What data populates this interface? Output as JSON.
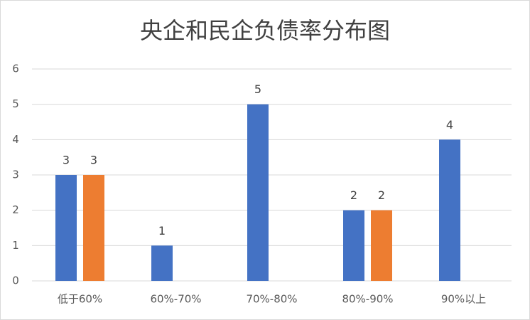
{
  "chart_data": {
    "type": "bar",
    "title": "央企和民企负债率分布图",
    "categories": [
      "低于60%",
      "60%-70%",
      "70%-80%",
      "80%-90%",
      "90%以上"
    ],
    "series": [
      {
        "color": "#4472c4",
        "values": [
          3,
          1,
          5,
          2,
          4
        ]
      },
      {
        "color": "#ed7d31",
        "values": [
          3,
          null,
          null,
          2,
          null
        ]
      }
    ],
    "ylim": [
      0,
      6
    ],
    "yticks": [
      0,
      1,
      2,
      3,
      4,
      5,
      6
    ],
    "grid": true
  }
}
